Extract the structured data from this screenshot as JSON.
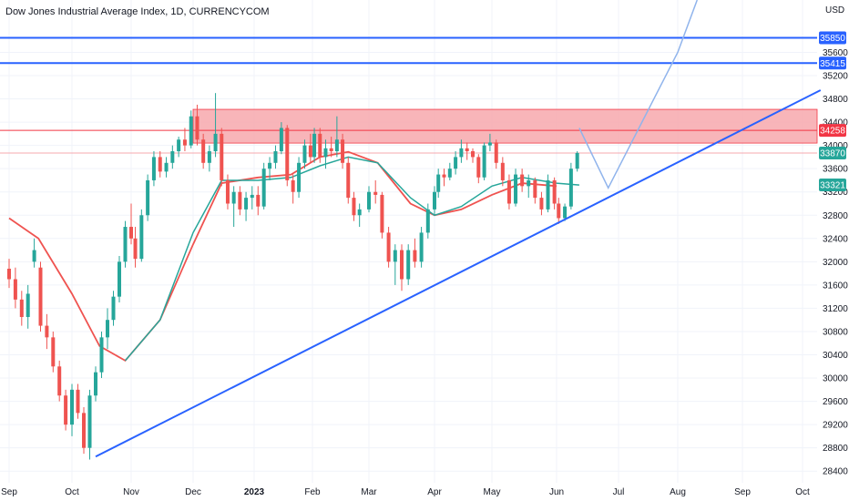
{
  "chart_data": {
    "type": "candlestick",
    "title": "Dow Jones Industrial Average Index, 1D, CURRENCYCOM",
    "currency": "USD",
    "x_labels": [
      "Sep",
      "Oct",
      "Nov",
      "Dec",
      "2023",
      "Feb",
      "Mar",
      "Apr",
      "May",
      "Jun",
      "Jul",
      "Aug",
      "Sep",
      "Oct"
    ],
    "bold_x_labels": [
      "2023"
    ],
    "y_ticks": [
      35600,
      35200,
      34800,
      34400,
      34000,
      33600,
      33200,
      32800,
      32400,
      32000,
      31600,
      31200,
      30800,
      30400,
      30000,
      29600,
      29200,
      28800,
      28400
    ],
    "ylim": [
      28200,
      36500
    ],
    "colors": {
      "up": "#26a69a",
      "down": "#ef5350",
      "trendline": "#2962ff",
      "resistance_zone_fill": "#f7a8ad",
      "resistance_zone_border": "#f23645",
      "moving_average_fast": "#ef5350",
      "moving_average_slow": "#26a69a",
      "projection": "#90b4ec",
      "price_badge": "#26a69a",
      "horizontal_line": "#2962ff"
    },
    "price_badges": [
      {
        "value": "35850",
        "color": "#2962ff"
      },
      {
        "value": "35415",
        "color": "#2962ff"
      },
      {
        "value": "34258",
        "color": "#f23645"
      },
      {
        "value": "33870",
        "color": "#26a69a"
      },
      {
        "value": "33321",
        "color": "#26a69a"
      }
    ],
    "horizontal_lines": [
      {
        "price": 35850,
        "color": "#2962ff"
      },
      {
        "price": 35415,
        "color": "#2962ff"
      },
      {
        "price": 34258,
        "color": "#f23645"
      }
    ],
    "resistance_zone": {
      "from_date": "Dec 1",
      "to_date": "Oct 10",
      "low": 34040,
      "high": 34620
    },
    "ascending_trendline": [
      {
        "date": "Oct 13",
        "price": 28650
      },
      {
        "date": "Oct 10",
        "price": 34950
      }
    ],
    "projection_path": [
      {
        "date": "Jun 12",
        "price": 34300
      },
      {
        "date": "Jun 26",
        "price": 33270
      },
      {
        "date": "Aug 1",
        "price": 35600
      },
      {
        "date": "Aug 10",
        "price": 36500
      }
    ],
    "moving_average_fast": [
      {
        "date": "Sep 1",
        "price": 32750
      },
      {
        "date": "Sep 15",
        "price": 32400
      },
      {
        "date": "Oct 1",
        "price": 31450
      },
      {
        "date": "Oct 15",
        "price": 30550
      },
      {
        "date": "Oct 28",
        "price": 30300
      },
      {
        "date": "Nov 15",
        "price": 31000
      },
      {
        "date": "Dec 1",
        "price": 32300
      },
      {
        "date": "Dec 15",
        "price": 33350
      },
      {
        "date": "Jan 3",
        "price": 33450
      },
      {
        "date": "Jan 20",
        "price": 33500
      },
      {
        "date": "Feb 5",
        "price": 33800
      },
      {
        "date": "Feb 20",
        "price": 33890
      },
      {
        "date": "Mar 5",
        "price": 33700
      },
      {
        "date": "Mar 20",
        "price": 33000
      },
      {
        "date": "Apr 1",
        "price": 32800
      },
      {
        "date": "Apr 15",
        "price": 32900
      },
      {
        "date": "May 1",
        "price": 33150
      },
      {
        "date": "May 15",
        "price": 33350
      },
      {
        "date": "Jun 1",
        "price": 33300
      }
    ],
    "moving_average_slow": [
      {
        "date": "Oct 28",
        "price": 30300
      },
      {
        "date": "Nov 15",
        "price": 31000
      },
      {
        "date": "Dec 1",
        "price": 32500
      },
      {
        "date": "Dec 15",
        "price": 33400
      },
      {
        "date": "Jan 3",
        "price": 33400
      },
      {
        "date": "Jan 20",
        "price": 33450
      },
      {
        "date": "Feb 5",
        "price": 33650
      },
      {
        "date": "Feb 20",
        "price": 33800
      },
      {
        "date": "Mar 5",
        "price": 33700
      },
      {
        "date": "Mar 20",
        "price": 33100
      },
      {
        "date": "Apr 1",
        "price": 32800
      },
      {
        "date": "Apr 15",
        "price": 32950
      },
      {
        "date": "May 1",
        "price": 33300
      },
      {
        "date": "May 15",
        "price": 33450
      },
      {
        "date": "Jun 1",
        "price": 33350
      },
      {
        "date": "Jun 12",
        "price": 33320
      }
    ],
    "candles": [
      {
        "date": "Sep 1",
        "open": 31880,
        "high": 32050,
        "low": 31550,
        "close": 31700
      },
      {
        "date": "Sep 4",
        "open": 31700,
        "high": 31900,
        "low": 31200,
        "close": 31350
      },
      {
        "date": "Sep 7",
        "open": 31350,
        "high": 31500,
        "low": 30900,
        "close": 31050
      },
      {
        "date": "Sep 10",
        "open": 31050,
        "high": 31600,
        "low": 30850,
        "close": 31450
      },
      {
        "date": "Sep 13",
        "open": 32000,
        "high": 32400,
        "low": 31900,
        "close": 32200
      },
      {
        "date": "Sep 16",
        "open": 31900,
        "high": 32000,
        "low": 30800,
        "close": 30900
      },
      {
        "date": "Sep 19",
        "open": 30900,
        "high": 31100,
        "low": 30500,
        "close": 30700
      },
      {
        "date": "Sep 22",
        "open": 30700,
        "high": 30800,
        "low": 30100,
        "close": 30200
      },
      {
        "date": "Sep 25",
        "open": 30200,
        "high": 30300,
        "low": 29600,
        "close": 29700
      },
      {
        "date": "Sep 28",
        "open": 29700,
        "high": 29800,
        "low": 29100,
        "close": 29200
      },
      {
        "date": "Oct 1",
        "open": 29200,
        "high": 29900,
        "low": 29000,
        "close": 29800
      },
      {
        "date": "Oct 4",
        "open": 29800,
        "high": 29900,
        "low": 29300,
        "close": 29400
      },
      {
        "date": "Oct 7",
        "open": 29400,
        "high": 29500,
        "low": 28700,
        "close": 28800
      },
      {
        "date": "Oct 10",
        "open": 28800,
        "high": 29800,
        "low": 28600,
        "close": 29700
      },
      {
        "date": "Oct 13",
        "open": 29700,
        "high": 30200,
        "low": 29600,
        "close": 30100
      },
      {
        "date": "Oct 16",
        "open": 30100,
        "high": 30800,
        "low": 30000,
        "close": 30700
      },
      {
        "date": "Oct 19",
        "open": 30700,
        "high": 31200,
        "low": 30500,
        "close": 31000
      },
      {
        "date": "Oct 22",
        "open": 31000,
        "high": 31500,
        "low": 30900,
        "close": 31400
      },
      {
        "date": "Oct 25",
        "open": 31400,
        "high": 32100,
        "low": 31300,
        "close": 32000
      },
      {
        "date": "Oct 28",
        "open": 32000,
        "high": 32700,
        "low": 31900,
        "close": 32600
      },
      {
        "date": "Oct 31",
        "open": 32600,
        "high": 33000,
        "low": 32300,
        "close": 32400
      },
      {
        "date": "Nov 3",
        "open": 32400,
        "high": 32600,
        "low": 31900,
        "close": 32050
      },
      {
        "date": "Nov 6",
        "open": 32050,
        "high": 32900,
        "low": 32000,
        "close": 32800
      },
      {
        "date": "Nov 9",
        "open": 32800,
        "high": 33500,
        "low": 32700,
        "close": 33400
      },
      {
        "date": "Nov 12",
        "open": 33400,
        "high": 33900,
        "low": 33300,
        "close": 33800
      },
      {
        "date": "Nov 15",
        "open": 33800,
        "high": 33900,
        "low": 33450,
        "close": 33550
      },
      {
        "date": "Nov 18",
        "open": 33550,
        "high": 33800,
        "low": 33450,
        "close": 33700
      },
      {
        "date": "Nov 21",
        "open": 33700,
        "high": 34000,
        "low": 33600,
        "close": 33900
      },
      {
        "date": "Nov 24",
        "open": 33900,
        "high": 34150,
        "low": 33800,
        "close": 34100
      },
      {
        "date": "Nov 27",
        "open": 34100,
        "high": 34300,
        "low": 33900,
        "close": 34000
      },
      {
        "date": "Nov 30",
        "open": 34000,
        "high": 34600,
        "low": 33950,
        "close": 34500
      },
      {
        "date": "Dec 3",
        "open": 34500,
        "high": 34700,
        "low": 34000,
        "close": 34100
      },
      {
        "date": "Dec 6",
        "open": 34100,
        "high": 34200,
        "low": 33600,
        "close": 33700
      },
      {
        "date": "Dec 9",
        "open": 33700,
        "high": 34000,
        "low": 33550,
        "close": 33900
      },
      {
        "date": "Dec 12",
        "open": 33900,
        "high": 34900,
        "low": 33800,
        "close": 34200
      },
      {
        "date": "Dec 15",
        "open": 34200,
        "high": 34300,
        "low": 33300,
        "close": 33400
      },
      {
        "date": "Dec 18",
        "open": 33400,
        "high": 33500,
        "low": 32900,
        "close": 33000
      },
      {
        "date": "Dec 21",
        "open": 33000,
        "high": 33300,
        "low": 32600,
        "close": 33200
      },
      {
        "date": "Dec 24",
        "open": 33200,
        "high": 33300,
        "low": 32800,
        "close": 32900
      },
      {
        "date": "Dec 27",
        "open": 32900,
        "high": 33200,
        "low": 32700,
        "close": 33100
      },
      {
        "date": "Dec 30",
        "open": 33100,
        "high": 33300,
        "low": 32900,
        "close": 33150
      },
      {
        "date": "Jan 3",
        "open": 33150,
        "high": 33300,
        "low": 32800,
        "close": 32950
      },
      {
        "date": "Jan 6",
        "open": 32950,
        "high": 33700,
        "low": 32900,
        "close": 33600
      },
      {
        "date": "Jan 9",
        "open": 33600,
        "high": 33800,
        "low": 33400,
        "close": 33700
      },
      {
        "date": "Jan 12",
        "open": 33700,
        "high": 34000,
        "low": 33600,
        "close": 33900
      },
      {
        "date": "Jan 15",
        "open": 33900,
        "high": 34400,
        "low": 33850,
        "close": 34300
      },
      {
        "date": "Jan 18",
        "open": 34300,
        "high": 34350,
        "low": 33300,
        "close": 33400
      },
      {
        "date": "Jan 21",
        "open": 33400,
        "high": 33500,
        "low": 33000,
        "close": 33200
      },
      {
        "date": "Jan 24",
        "open": 33200,
        "high": 33800,
        "low": 33100,
        "close": 33700
      },
      {
        "date": "Jan 27",
        "open": 33700,
        "high": 34100,
        "low": 33600,
        "close": 34000
      },
      {
        "date": "Jan 30",
        "open": 34000,
        "high": 34200,
        "low": 33700,
        "close": 33800
      },
      {
        "date": "Feb 2",
        "open": 33800,
        "high": 34300,
        "low": 33700,
        "close": 34200
      },
      {
        "date": "Feb 5",
        "open": 34200,
        "high": 34300,
        "low": 33700,
        "close": 33800
      },
      {
        "date": "Feb 8",
        "open": 33800,
        "high": 34100,
        "low": 33600,
        "close": 33950
      },
      {
        "date": "Feb 11",
        "open": 33950,
        "high": 34150,
        "low": 33800,
        "close": 33900
      },
      {
        "date": "Feb 14",
        "open": 33900,
        "high": 34500,
        "low": 33800,
        "close": 34100
      },
      {
        "date": "Feb 17",
        "open": 34100,
        "high": 34200,
        "low": 33600,
        "close": 33700
      },
      {
        "date": "Feb 20",
        "open": 33700,
        "high": 33800,
        "low": 33000,
        "close": 33100
      },
      {
        "date": "Feb 23",
        "open": 33100,
        "high": 33200,
        "low": 32700,
        "close": 32800
      },
      {
        "date": "Feb 26",
        "open": 32800,
        "high": 33000,
        "low": 32600,
        "close": 32900
      },
      {
        "date": "Mar 1",
        "open": 32900,
        "high": 33300,
        "low": 32850,
        "close": 33200
      },
      {
        "date": "Mar 4",
        "open": 33200,
        "high": 33400,
        "low": 33000,
        "close": 33150
      },
      {
        "date": "Mar 7",
        "open": 33150,
        "high": 33200,
        "low": 32400,
        "close": 32500
      },
      {
        "date": "Mar 10",
        "open": 32500,
        "high": 32600,
        "low": 31900,
        "close": 32000
      },
      {
        "date": "Mar 13",
        "open": 32000,
        "high": 32300,
        "low": 31600,
        "close": 32200
      },
      {
        "date": "Mar 16",
        "open": 32200,
        "high": 32300,
        "low": 31500,
        "close": 31700
      },
      {
        "date": "Mar 19",
        "open": 31700,
        "high": 32300,
        "low": 31600,
        "close": 32200
      },
      {
        "date": "Mar 22",
        "open": 32200,
        "high": 32400,
        "low": 31900,
        "close": 32000
      },
      {
        "date": "Mar 25",
        "open": 32000,
        "high": 32600,
        "low": 31900,
        "close": 32500
      },
      {
        "date": "Mar 28",
        "open": 32500,
        "high": 33000,
        "low": 32400,
        "close": 32900
      },
      {
        "date": "Mar 31",
        "open": 32900,
        "high": 33300,
        "low": 32800,
        "close": 33200
      },
      {
        "date": "Apr 3",
        "open": 33200,
        "high": 33600,
        "low": 33100,
        "close": 33500
      },
      {
        "date": "Apr 6",
        "open": 33500,
        "high": 33600,
        "low": 33300,
        "close": 33450
      },
      {
        "date": "Apr 9",
        "open": 33450,
        "high": 33700,
        "low": 33400,
        "close": 33600
      },
      {
        "date": "Apr 12",
        "open": 33600,
        "high": 33900,
        "low": 33500,
        "close": 33800
      },
      {
        "date": "Apr 15",
        "open": 33800,
        "high": 34100,
        "low": 33700,
        "close": 33950
      },
      {
        "date": "Apr 18",
        "open": 33950,
        "high": 34050,
        "low": 33750,
        "close": 33900
      },
      {
        "date": "Apr 21",
        "open": 33900,
        "high": 33950,
        "low": 33700,
        "close": 33800
      },
      {
        "date": "Apr 24",
        "open": 33800,
        "high": 33850,
        "low": 33350,
        "close": 33450
      },
      {
        "date": "Apr 27",
        "open": 33450,
        "high": 34050,
        "low": 33400,
        "close": 34000
      },
      {
        "date": "Apr 30",
        "open": 34000,
        "high": 34200,
        "low": 33900,
        "close": 34050
      },
      {
        "date": "May 3",
        "open": 34050,
        "high": 34100,
        "low": 33600,
        "close": 33700
      },
      {
        "date": "May 6",
        "open": 33700,
        "high": 33800,
        "low": 33300,
        "close": 33400
      },
      {
        "date": "May 9",
        "open": 33400,
        "high": 33500,
        "low": 32900,
        "close": 33000
      },
      {
        "date": "May 12",
        "open": 33000,
        "high": 33600,
        "low": 32950,
        "close": 33500
      },
      {
        "date": "May 15",
        "open": 33500,
        "high": 33600,
        "low": 33200,
        "close": 33300
      },
      {
        "date": "May 18",
        "open": 33300,
        "high": 33500,
        "low": 33100,
        "close": 33400
      },
      {
        "date": "May 21",
        "open": 33400,
        "high": 33450,
        "low": 33000,
        "close": 33100
      },
      {
        "date": "May 24",
        "open": 33100,
        "high": 33200,
        "low": 32800,
        "close": 32900
      },
      {
        "date": "May 27",
        "open": 32900,
        "high": 33500,
        "low": 32850,
        "close": 33400
      },
      {
        "date": "May 30",
        "open": 33400,
        "high": 33450,
        "low": 32900,
        "close": 33000
      },
      {
        "date": "Jun 2",
        "open": 33000,
        "high": 33100,
        "low": 32650,
        "close": 32750
      },
      {
        "date": "Jun 5",
        "open": 32750,
        "high": 33000,
        "low": 32700,
        "close": 32950
      },
      {
        "date": "Jun 8",
        "open": 32950,
        "high": 33700,
        "low": 32900,
        "close": 33600
      },
      {
        "date": "Jun 11",
        "open": 33600,
        "high": 33900,
        "low": 33550,
        "close": 33870
      }
    ]
  }
}
